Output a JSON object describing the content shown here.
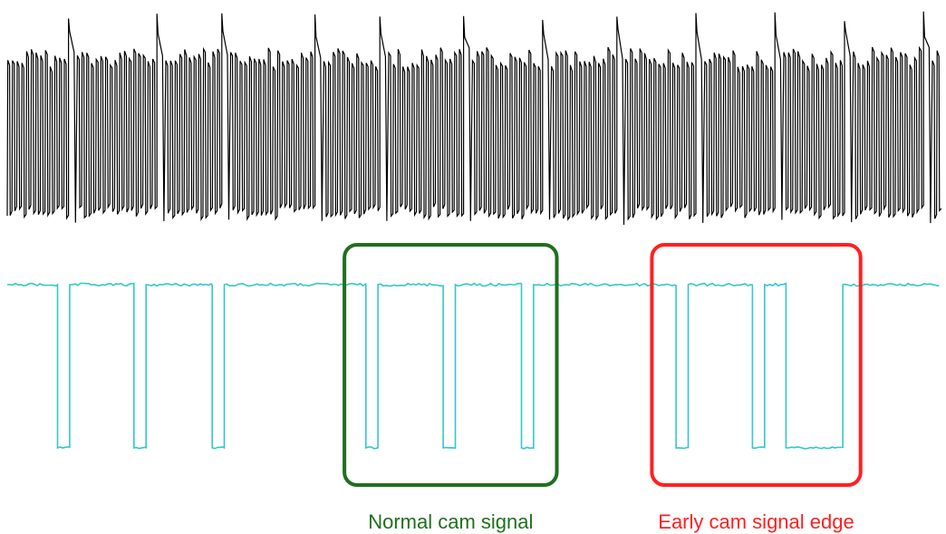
{
  "chart_data": {
    "type": "line",
    "title": "",
    "xlabel": "",
    "ylabel": "",
    "grid": false,
    "legend": "none",
    "series": [
      {
        "role": "crank",
        "color": "#000000",
        "pattern": "square wave with periodic missing-tooth gaps",
        "gap_positions": [
          0.064,
          0.158,
          0.231,
          0.329,
          0.4,
          0.487,
          0.572,
          0.653,
          0.737,
          0.823,
          0.9,
          0.982
        ]
      },
      {
        "role": "cam",
        "color": "#33c8c8",
        "level": "high, with downward pulses",
        "pulses": [
          {
            "start": 0.054,
            "end": 0.067
          },
          {
            "start": 0.136,
            "end": 0.149
          },
          {
            "start": 0.22,
            "end": 0.233
          },
          {
            "start": 0.385,
            "end": 0.398
          },
          {
            "start": 0.468,
            "end": 0.481
          },
          {
            "start": 0.552,
            "end": 0.565
          },
          {
            "start": 0.718,
            "end": 0.731
          },
          {
            "start": 0.8,
            "end": 0.813
          },
          {
            "start": 0.836,
            "end": 0.897
          }
        ]
      }
    ],
    "annotations": [
      {
        "label": "Normal cam signal",
        "color": "#1f6f1f",
        "x_range": [
          0.362,
          0.59
        ]
      },
      {
        "label": "Early cam signal edge",
        "color": "#ff2020",
        "x_range": [
          0.692,
          0.916
        ]
      }
    ]
  }
}
